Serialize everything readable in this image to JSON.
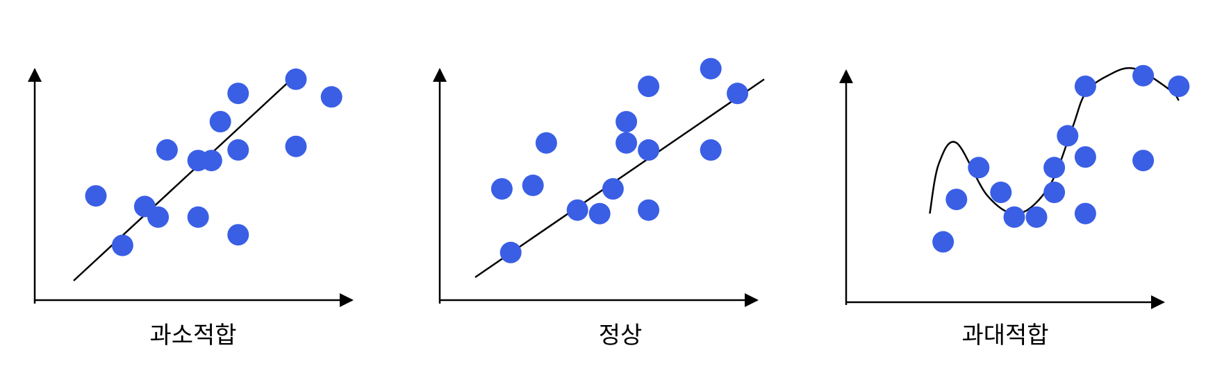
{
  "colors": {
    "point": "#3a5fe5",
    "line": "#000000",
    "axis": "#000000",
    "background": "#ffffff"
  },
  "panels": [
    {
      "name": "underfit",
      "label": "과소적합",
      "points": [
        [
          1.1,
          1.0
        ],
        [
          1.6,
          2.1
        ],
        [
          2.1,
          3.7
        ],
        [
          3.1,
          3.4
        ],
        [
          1.9,
          1.8
        ],
        [
          2.8,
          3.4
        ],
        [
          3.3,
          4.5
        ],
        [
          2.8,
          1.8
        ],
        [
          3.7,
          5.3
        ],
        [
          3.7,
          3.7
        ],
        [
          3.7,
          1.3
        ],
        [
          5.0,
          3.8
        ],
        [
          5.0,
          5.7
        ],
        [
          5.8,
          5.2
        ],
        [
          0.5,
          2.4
        ]
      ],
      "fit": {
        "kind": "line",
        "x": [
          0.0,
          4.9
        ],
        "y": [
          0.0,
          5.7
        ]
      }
    },
    {
      "name": "good-fit",
      "label": "정상",
      "points": [
        [
          0.8,
          0.7
        ],
        [
          1.3,
          2.6
        ],
        [
          1.6,
          3.8
        ],
        [
          2.3,
          1.9
        ],
        [
          2.8,
          1.8
        ],
        [
          3.1,
          2.5
        ],
        [
          3.4,
          3.8
        ],
        [
          3.4,
          4.4
        ],
        [
          3.9,
          3.6
        ],
        [
          3.9,
          5.4
        ],
        [
          3.9,
          1.9
        ],
        [
          5.3,
          3.6
        ],
        [
          5.3,
          5.9
        ],
        [
          5.9,
          5.2
        ],
        [
          0.6,
          2.5
        ]
      ],
      "fit": {
        "kind": "line",
        "x": [
          0.0,
          6.5
        ],
        "y": [
          0.0,
          5.6
        ]
      }
    },
    {
      "name": "overfit",
      "label": "과대적합",
      "points": [
        [
          0.9,
          1.1
        ],
        [
          1.2,
          2.3
        ],
        [
          1.7,
          3.2
        ],
        [
          2.2,
          2.5
        ],
        [
          2.5,
          1.8
        ],
        [
          3.0,
          1.8
        ],
        [
          3.4,
          2.5
        ],
        [
          3.4,
          3.2
        ],
        [
          3.7,
          4.1
        ],
        [
          4.1,
          5.5
        ],
        [
          4.1,
          3.5
        ],
        [
          4.1,
          1.9
        ],
        [
          5.4,
          5.8
        ],
        [
          5.4,
          3.4
        ],
        [
          6.2,
          5.5
        ]
      ],
      "fit": {
        "kind": "curve",
        "x": [
          0.6,
          0.8,
          1.2,
          1.9,
          2.6,
          3.3,
          3.8,
          4.1,
          4.6,
          5.2,
          6.0,
          6.2
        ],
        "y": [
          1.9,
          3.3,
          3.9,
          2.4,
          1.9,
          2.7,
          4.3,
          5.3,
          5.8,
          6.0,
          5.4,
          5.1
        ]
      }
    }
  ]
}
